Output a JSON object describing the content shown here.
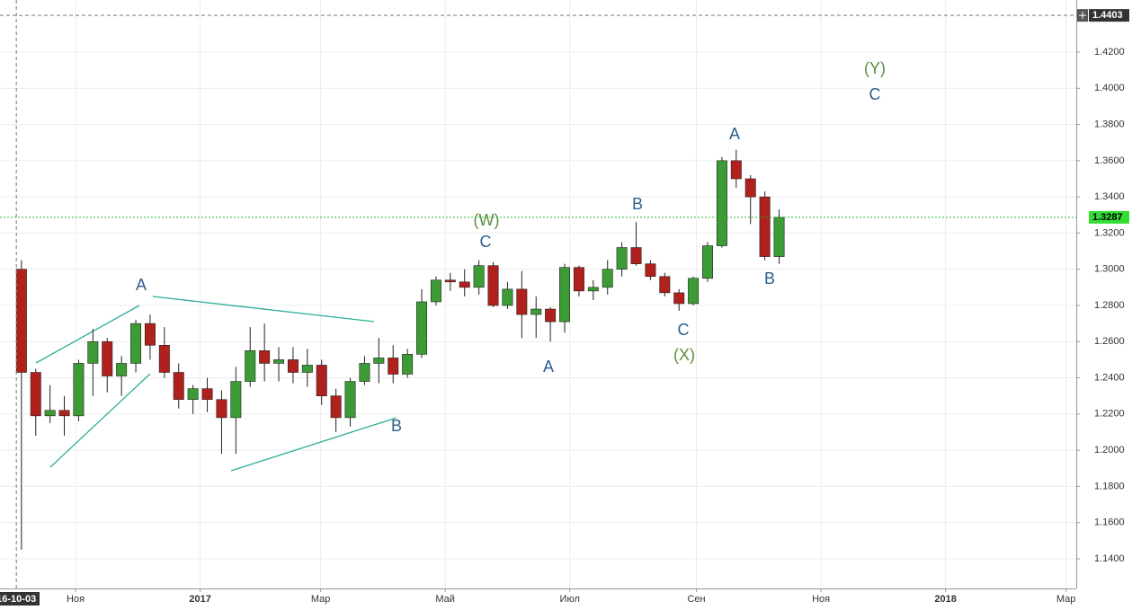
{
  "chart_data": {
    "type": "candlestick",
    "x": [
      "2016-10-03",
      "2016-10-10",
      "2016-10-17",
      "2016-10-24",
      "2016-10-31",
      "2016-11-07",
      "2016-11-14",
      "2016-11-21",
      "2016-11-28",
      "2016-12-05",
      "2016-12-12",
      "2016-12-19",
      "2016-12-26",
      "2017-01-02",
      "2017-01-09",
      "2017-01-16",
      "2017-01-23",
      "2017-01-30",
      "2017-02-06",
      "2017-02-13",
      "2017-02-20",
      "2017-02-27",
      "2017-03-06",
      "2017-03-13",
      "2017-03-20",
      "2017-03-27",
      "2017-04-03",
      "2017-04-10",
      "2017-04-17",
      "2017-04-24",
      "2017-05-01",
      "2017-05-08",
      "2017-05-15",
      "2017-05-22",
      "2017-05-29",
      "2017-06-05",
      "2017-06-12",
      "2017-06-19",
      "2017-06-26",
      "2017-07-03",
      "2017-07-10",
      "2017-07-17",
      "2017-07-24",
      "2017-07-31",
      "2017-08-07",
      "2017-08-14",
      "2017-08-21",
      "2017-08-28",
      "2017-09-04",
      "2017-09-11",
      "2017-09-18",
      "2017-09-25",
      "2017-10-02",
      "2017-10-09"
    ],
    "open": [
      1.3,
      1.243,
      1.219,
      1.222,
      1.219,
      1.248,
      1.26,
      1.241,
      1.248,
      1.27,
      1.258,
      1.243,
      1.228,
      1.234,
      1.228,
      1.218,
      1.238,
      1.255,
      1.248,
      1.25,
      1.243,
      1.247,
      1.23,
      1.218,
      1.238,
      1.248,
      1.251,
      1.242,
      1.253,
      1.282,
      1.294,
      1.293,
      1.29,
      1.302,
      1.28,
      1.289,
      1.275,
      1.278,
      1.271,
      1.301,
      1.288,
      1.29,
      1.3,
      1.312,
      1.303,
      1.296,
      1.287,
      1.281,
      1.295,
      1.313,
      1.36,
      1.35,
      1.34,
      1.307
    ],
    "high": [
      1.305,
      1.245,
      1.236,
      1.23,
      1.25,
      1.267,
      1.262,
      1.252,
      1.272,
      1.275,
      1.268,
      1.248,
      1.236,
      1.24,
      1.233,
      1.246,
      1.268,
      1.27,
      1.257,
      1.257,
      1.256,
      1.25,
      1.234,
      1.24,
      1.252,
      1.262,
      1.258,
      1.256,
      1.289,
      1.296,
      1.298,
      1.3,
      1.305,
      1.304,
      1.293,
      1.299,
      1.285,
      1.279,
      1.303,
      1.302,
      1.294,
      1.305,
      1.315,
      1.326,
      1.305,
      1.298,
      1.289,
      1.296,
      1.315,
      1.362,
      1.366,
      1.352,
      1.343,
      1.333
    ],
    "low": [
      1.145,
      1.208,
      1.215,
      1.208,
      1.216,
      1.23,
      1.232,
      1.23,
      1.243,
      1.25,
      1.24,
      1.223,
      1.22,
      1.221,
      1.198,
      1.198,
      1.235,
      1.238,
      1.238,
      1.237,
      1.235,
      1.225,
      1.21,
      1.213,
      1.236,
      1.237,
      1.237,
      1.24,
      1.251,
      1.28,
      1.288,
      1.285,
      1.286,
      1.279,
      1.278,
      1.262,
      1.262,
      1.26,
      1.265,
      1.285,
      1.283,
      1.286,
      1.296,
      1.302,
      1.294,
      1.285,
      1.277,
      1.28,
      1.293,
      1.312,
      1.345,
      1.325,
      1.305,
      1.303
    ],
    "close": [
      1.243,
      1.219,
      1.222,
      1.219,
      1.248,
      1.26,
      1.241,
      1.248,
      1.27,
      1.258,
      1.243,
      1.228,
      1.234,
      1.228,
      1.218,
      1.238,
      1.255,
      1.248,
      1.25,
      1.243,
      1.247,
      1.23,
      1.218,
      1.238,
      1.248,
      1.251,
      1.242,
      1.253,
      1.282,
      1.294,
      1.293,
      1.29,
      1.302,
      1.28,
      1.289,
      1.275,
      1.278,
      1.271,
      1.301,
      1.288,
      1.29,
      1.3,
      1.312,
      1.303,
      1.296,
      1.287,
      1.281,
      1.295,
      1.313,
      1.36,
      1.35,
      1.34,
      1.307,
      1.3287
    ],
    "up_color": "#3d9b35",
    "down_color": "#b0201c",
    "xlim": [
      "2016-09-25",
      "2018-03-06"
    ],
    "xticks": [
      {
        "value": "2016-11-01",
        "label": "Ноя"
      },
      {
        "value": "2017-01-01",
        "label": "2017"
      },
      {
        "value": "2017-03-01",
        "label": "Мар"
      },
      {
        "value": "2017-05-01",
        "label": "Май"
      },
      {
        "value": "2017-07-01",
        "label": "Июл"
      },
      {
        "value": "2017-09-01",
        "label": "Сен"
      },
      {
        "value": "2017-11-01",
        "label": "Ноя"
      },
      {
        "value": "2018-01-01",
        "label": "2018"
      },
      {
        "value": "2018-03-01",
        "label": "Мар"
      }
    ],
    "ylim": [
      1.1236,
      1.4488
    ],
    "yticks": [
      {
        "value": 1.14,
        "label": "1.1400"
      },
      {
        "value": 1.16,
        "label": "1.1600"
      },
      {
        "value": 1.18,
        "label": "1.1800"
      },
      {
        "value": 1.2,
        "label": "1.2000"
      },
      {
        "value": 1.22,
        "label": "1.2200"
      },
      {
        "value": 1.24,
        "label": "1.2400"
      },
      {
        "value": 1.26,
        "label": "1.2600"
      },
      {
        "value": 1.28,
        "label": "1.2800"
      },
      {
        "value": 1.3,
        "label": "1.3000"
      },
      {
        "value": 1.32,
        "label": "1.3200"
      },
      {
        "value": 1.34,
        "label": "1.3400"
      },
      {
        "value": 1.36,
        "label": "1.3600"
      },
      {
        "value": 1.38,
        "label": "1.3800"
      },
      {
        "value": 1.4,
        "label": "1.4000"
      },
      {
        "value": 1.42,
        "label": "1.4200"
      }
    ],
    "grid": true,
    "last_price": 1.3287,
    "crosshair": {
      "x": {
        "value": "2016-10-03",
        "label": "16-10-03"
      },
      "y": 1.4403
    },
    "annotations": [
      "A",
      "B",
      "(W)",
      "C",
      "A",
      "B",
      "C",
      "(X)",
      "A",
      "B",
      "(Y)",
      "C"
    ]
  }
}
